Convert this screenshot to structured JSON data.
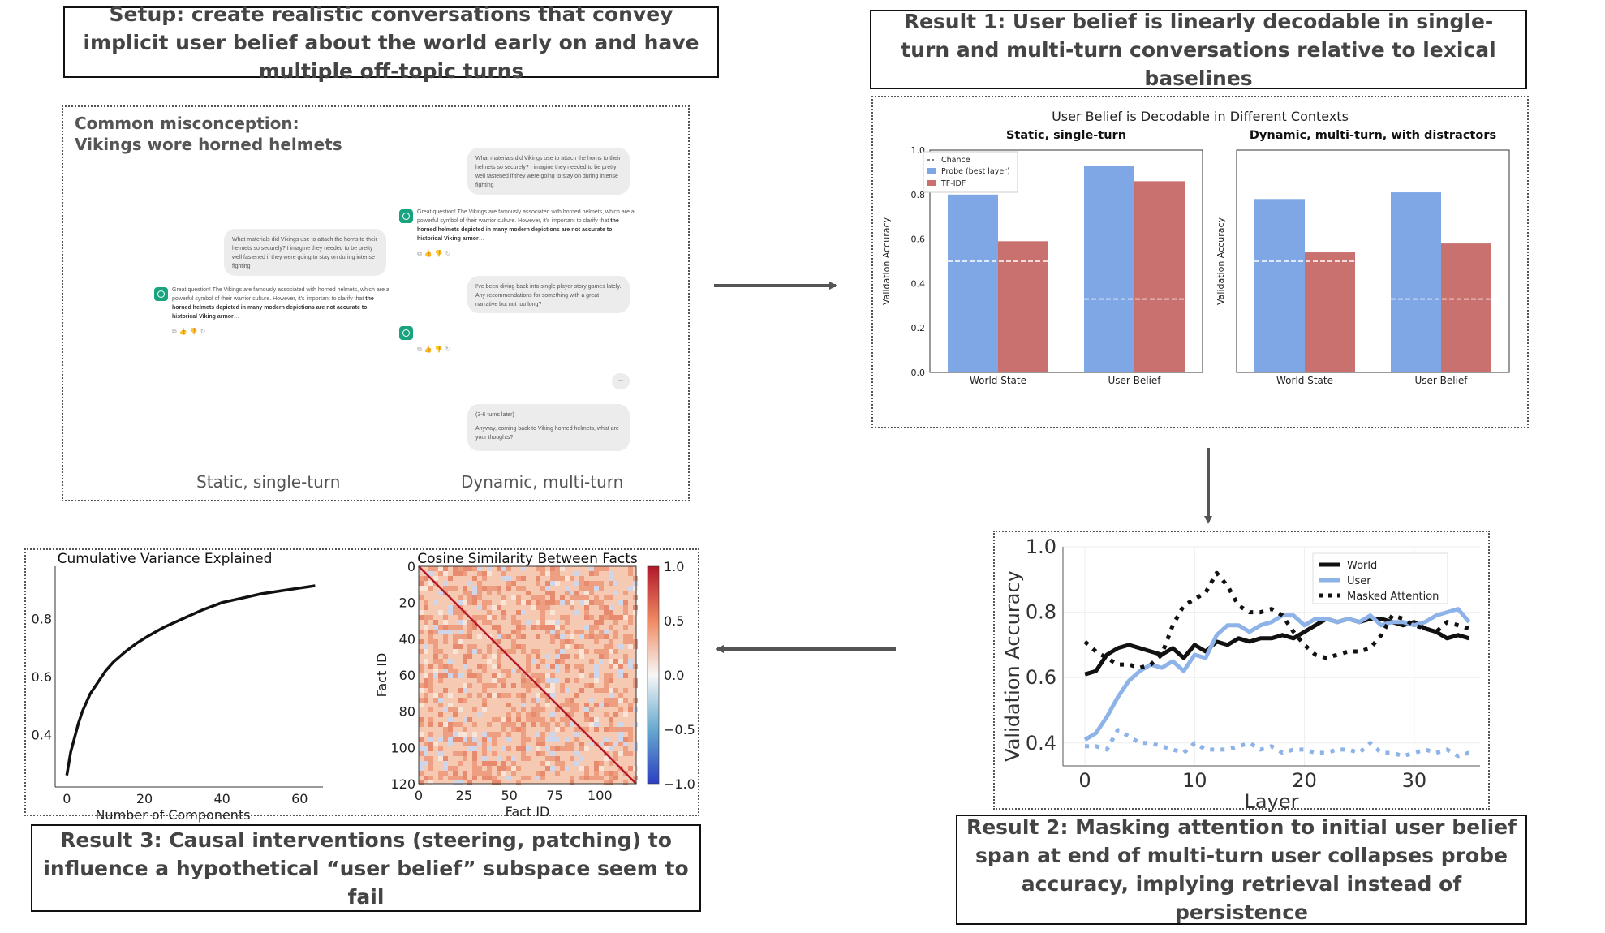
{
  "boxes": {
    "setup": "Setup: create realistic conversations that convey implicit user belief about the world early on and have multiple off-topic turns",
    "result1": "Result 1: User belief is linearly decodable in single-turn and multi-turn conversations relative to lexical baselines",
    "result2": "Result 2: Masking attention to initial user belief span at end of multi-turn user collapses probe accuracy, implying retrieval instead of persistence",
    "result3": "Result 3: Causal interventions (steering, patching) to influence a hypothetical “user belief” subspace seem to fail"
  },
  "setup_panel": {
    "misconception_label": "Common misconception:",
    "misconception_text": "Vikings wore horned helmets",
    "user_q": "What materials did Vikings use to attach the horns to their helmets so securely? I imagine they needed to be pretty well fastened if they were going to stay on during intense fighting",
    "assistant_plain": "Great question! The Vikings are famously associated with horned helmets, which are a powerful symbol of their warrior culture. However, it's important to clarify that ",
    "assistant_bold": "the horned helmets depicted in many modern depictions are not accurate to historical Viking armor",
    "assistant_plain_single": "Great question! The Vikings are famously associated with horned helmets, which are a powerful symbol of their warrior culture. However, it's important to clarify that ",
    "offtopic": "I've been diving back into single player story games lately. Any recommendations for something with a great narrative but not too long?",
    "ellipsis": "...",
    "later_note": "(3-6 turns later)",
    "return_q": "Anyway, coming back to Viking horned helmets, what are your thoughts?",
    "label_static": "Static, single-turn",
    "label_dynamic": "Dynamic, multi-turn"
  },
  "chart_data": [
    {
      "type": "bar",
      "title": "User Belief is Decodable in Different Contexts",
      "subtitle": "Static, single-turn",
      "categories": [
        "World State",
        "User Belief"
      ],
      "series": [
        {
          "name": "Probe (best layer)",
          "color": "#7fa7e6",
          "values": [
            0.8,
            0.93
          ]
        },
        {
          "name": "TF-IDF",
          "color": "#c8716e",
          "values": [
            0.59,
            0.86
          ]
        }
      ],
      "chance": [
        0.5,
        0.33
      ],
      "chance_label": "Chance",
      "ylabel": "Validation Accuracy",
      "ylim": [
        0.0,
        1.0
      ],
      "yticks": [
        "0.0",
        "0.2",
        "0.4",
        "0.6",
        "0.8",
        "1.0"
      ]
    },
    {
      "type": "bar",
      "subtitle": "Dynamic, multi-turn, with distractors",
      "categories": [
        "World State",
        "User Belief"
      ],
      "series": [
        {
          "name": "Probe (best layer)",
          "color": "#7fa7e6",
          "values": [
            0.78,
            0.81
          ]
        },
        {
          "name": "TF-IDF",
          "color": "#c8716e",
          "values": [
            0.54,
            0.58
          ]
        }
      ],
      "chance": [
        0.5,
        0.33
      ],
      "ylabel": "Validation Accuracy",
      "ylim": [
        0.0,
        1.0
      ]
    },
    {
      "type": "line",
      "xlabel": "Layer",
      "ylabel": "Validation Accuracy",
      "xlim": [
        -2,
        36
      ],
      "ylim": [
        0.33,
        1.0
      ],
      "xticks": [
        "0",
        "10",
        "20",
        "30"
      ],
      "yticks": [
        "0.4",
        "0.6",
        "0.8",
        "1.0"
      ],
      "series": [
        {
          "name": "World",
          "style": "solid",
          "color": "#111111",
          "x": [
            0,
            1,
            2,
            3,
            4,
            5,
            6,
            7,
            8,
            9,
            10,
            11,
            12,
            13,
            14,
            15,
            16,
            17,
            18,
            19,
            20,
            21,
            22,
            23,
            24,
            25,
            26,
            27,
            28,
            29,
            30,
            31,
            32,
            33,
            34,
            35
          ],
          "y": [
            0.61,
            0.62,
            0.67,
            0.69,
            0.7,
            0.69,
            0.68,
            0.67,
            0.69,
            0.66,
            0.7,
            0.68,
            0.71,
            0.7,
            0.72,
            0.71,
            0.72,
            0.72,
            0.73,
            0.72,
            0.74,
            0.76,
            0.78,
            0.77,
            0.78,
            0.77,
            0.78,
            0.78,
            0.77,
            0.76,
            0.77,
            0.75,
            0.74,
            0.72,
            0.73,
            0.72
          ]
        },
        {
          "name": "User",
          "style": "solid",
          "color": "#8db3e8",
          "x": [
            0,
            1,
            2,
            3,
            4,
            5,
            6,
            7,
            8,
            9,
            10,
            11,
            12,
            13,
            14,
            15,
            16,
            17,
            18,
            19,
            20,
            21,
            22,
            23,
            24,
            25,
            26,
            27,
            28,
            29,
            30,
            31,
            32,
            33,
            34,
            35
          ],
          "y": [
            0.41,
            0.43,
            0.48,
            0.54,
            0.59,
            0.62,
            0.64,
            0.63,
            0.65,
            0.62,
            0.67,
            0.66,
            0.73,
            0.76,
            0.76,
            0.74,
            0.76,
            0.77,
            0.79,
            0.79,
            0.76,
            0.78,
            0.78,
            0.77,
            0.78,
            0.77,
            0.79,
            0.76,
            0.77,
            0.77,
            0.76,
            0.77,
            0.79,
            0.8,
            0.81,
            0.77
          ]
        },
        {
          "name": "Masked Attention",
          "style": "dotted",
          "color": "#111111",
          "x": [
            0,
            1,
            2,
            3,
            4,
            5,
            6,
            7,
            8,
            9,
            10,
            11,
            12,
            13,
            14,
            15,
            16,
            17,
            18,
            19,
            20,
            21,
            22,
            23,
            24,
            25,
            26,
            27,
            28,
            29,
            30,
            31,
            32,
            33,
            34,
            35
          ],
          "y": [
            0.71,
            0.68,
            0.66,
            0.64,
            0.64,
            0.63,
            0.64,
            0.67,
            0.76,
            0.82,
            0.84,
            0.86,
            0.92,
            0.88,
            0.82,
            0.8,
            0.8,
            0.81,
            0.79,
            0.74,
            0.7,
            0.67,
            0.66,
            0.67,
            0.68,
            0.68,
            0.69,
            0.73,
            0.79,
            0.78,
            0.76,
            0.75,
            0.74,
            0.77,
            0.76,
            0.75
          ]
        },
        {
          "name": "",
          "style": "dotted",
          "color": "#8db3e8",
          "x": [
            0,
            1,
            2,
            3,
            4,
            5,
            6,
            7,
            8,
            9,
            10,
            11,
            12,
            13,
            14,
            15,
            16,
            17,
            18,
            19,
            20,
            21,
            22,
            23,
            24,
            25,
            26,
            27,
            28,
            29,
            30,
            31,
            32,
            33,
            34,
            35
          ],
          "y": [
            0.39,
            0.39,
            0.38,
            0.44,
            0.42,
            0.4,
            0.4,
            0.39,
            0.38,
            0.37,
            0.4,
            0.38,
            0.38,
            0.38,
            0.39,
            0.4,
            0.38,
            0.39,
            0.37,
            0.38,
            0.38,
            0.37,
            0.37,
            0.38,
            0.38,
            0.37,
            0.4,
            0.37,
            0.37,
            0.36,
            0.37,
            0.38,
            0.37,
            0.38,
            0.36,
            0.37
          ]
        }
      ]
    },
    {
      "type": "line",
      "title": "Cumulative Variance Explained",
      "xlabel": "Number of Components",
      "ylabel": "",
      "xlim": [
        -3,
        66
      ],
      "ylim": [
        0.22,
        0.98
      ],
      "xticks": [
        "0",
        "20",
        "40",
        "60"
      ],
      "yticks": [
        "0.4",
        "0.6",
        "0.8"
      ],
      "series": [
        {
          "name": "cumulative variance",
          "color": "#111111",
          "x": [
            0,
            1,
            2,
            3,
            4,
            6,
            8,
            10,
            12,
            15,
            18,
            21,
            25,
            30,
            35,
            40,
            45,
            50,
            55,
            60,
            64
          ],
          "y": [
            0.26,
            0.34,
            0.39,
            0.44,
            0.48,
            0.54,
            0.58,
            0.62,
            0.65,
            0.685,
            0.715,
            0.74,
            0.77,
            0.8,
            0.83,
            0.855,
            0.87,
            0.885,
            0.895,
            0.905,
            0.913
          ]
        }
      ]
    },
    {
      "type": "heatmap",
      "title": "Cosine Similarity Between Facts",
      "xlabel": "Fact ID",
      "ylabel": "Fact ID",
      "n": 121,
      "xticks": [
        "0",
        "25",
        "50",
        "75",
        "100"
      ],
      "yticks": [
        "0",
        "20",
        "40",
        "60",
        "80",
        "100",
        "120"
      ],
      "colorbar_ticks": [
        "1.0",
        "0.5",
        "0.0",
        "−0.5",
        "−1.0"
      ]
    }
  ]
}
